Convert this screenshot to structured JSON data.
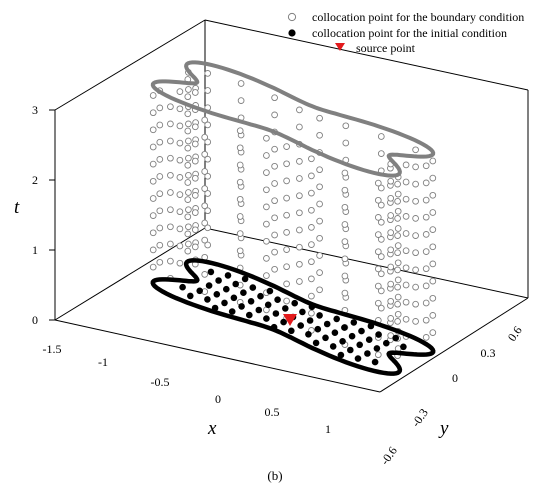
{
  "figure": {
    "caption": "(b)",
    "axes": {
      "x_label": "x",
      "y_label": "y",
      "t_label": "t",
      "x_ticks": [
        "-1.5",
        "-1",
        "-0.5",
        "0",
        "0.5",
        "1"
      ],
      "y_ticks": [
        "-0.6",
        "-0.3",
        "0",
        "0.3",
        "0.6"
      ],
      "t_ticks": [
        "0",
        "1",
        "2",
        "3"
      ]
    },
    "legend": {
      "placement": "top-right",
      "items": [
        {
          "label": "collocation point for the boundary condition",
          "marker": "open-circle"
        },
        {
          "label": "collocation point for the initial condition",
          "marker": "filled-circle"
        },
        {
          "label": "source point",
          "marker": "red-triangle"
        }
      ]
    },
    "colors": {
      "boundary_point": "#808080",
      "initial_point": "#000000",
      "source_point": "#e31a1c",
      "top_curve": "#808080",
      "bottom_curve": "#000000"
    }
  }
}
